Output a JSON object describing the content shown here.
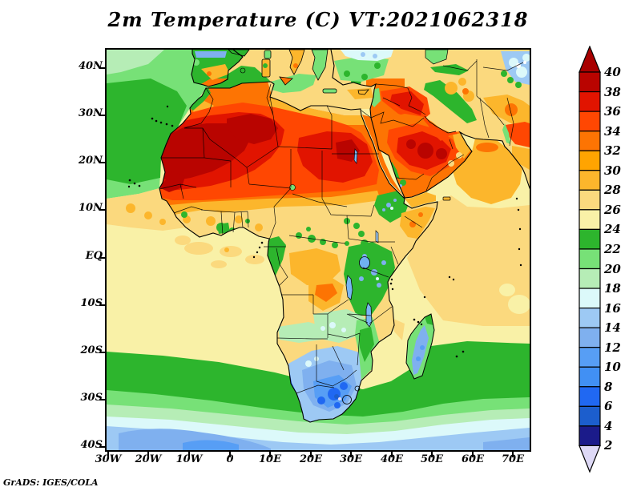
{
  "title": "2m  Temperature  (C)  VT:2021062318",
  "credit": "GrADS: IGES/COLA",
  "map": {
    "x_axis": {
      "labels": [
        "30W",
        "20W",
        "10W",
        "0",
        "10E",
        "20E",
        "30E",
        "40E",
        "50E",
        "60E",
        "70E"
      ]
    },
    "y_axis": {
      "labels": [
        "40N",
        "30N",
        "20N",
        "10N",
        "EQ",
        "10S",
        "20S",
        "30S",
        "40S"
      ]
    }
  },
  "colorbar": {
    "labels_top_to_bottom": [
      "40",
      "38",
      "36",
      "34",
      "32",
      "30",
      "28",
      "26",
      "24",
      "22",
      "20",
      "18",
      "16",
      "14",
      "12",
      "10",
      "8",
      "6",
      "4",
      "2"
    ],
    "over_color": "#a80000",
    "under_color": "#ded9f6",
    "cell_colors_top_to_bottom": [
      "#b90400",
      "#e11400",
      "#ff4702",
      "#fd7403",
      "#ffa401",
      "#fcb62c",
      "#fbd97e",
      "#f9f1a7",
      "#2db52d",
      "#77e177",
      "#b6edb6",
      "#dcf9fa",
      "#9dc9f4",
      "#7fb0ef",
      "#579ef5",
      "#4190f4",
      "#2068f2",
      "#1c5ecd",
      "#1b1b8a"
    ]
  },
  "chart_data": {
    "type": "heatmap",
    "title": "2m Temperature (C) VT:2021062318",
    "variable": "2-meter air temperature",
    "units": "C",
    "valid_time_label": "VT:2021062318",
    "source_label": "GrADS: IGES/COLA",
    "lon_range_deg": [
      -30.4,
      74.2
    ],
    "lat_range_deg": [
      -40.7,
      43.9
    ],
    "x_ticks": [
      "30W",
      "20W",
      "10W",
      "0",
      "10E",
      "20E",
      "30E",
      "40E",
      "50E",
      "60E",
      "70E"
    ],
    "y_ticks": [
      "40N",
      "30N",
      "20N",
      "10N",
      "EQ",
      "10S",
      "20S",
      "30S",
      "40S"
    ],
    "contour_levels_c": [
      2,
      4,
      6,
      8,
      10,
      12,
      14,
      16,
      18,
      20,
      22,
      24,
      26,
      28,
      30,
      32,
      34,
      36,
      38,
      40
    ],
    "palette_low_to_high": [
      "#ded9f6",
      "#1b1b8a",
      "#1c5ecd",
      "#2068f2",
      "#4190f4",
      "#579ef5",
      "#7fb0ef",
      "#9dc9f4",
      "#dcf9fa",
      "#b6edb6",
      "#77e177",
      "#2db52d",
      "#f9f1a7",
      "#fbd97e",
      "#fcb62c",
      "#ffa401",
      "#fd7403",
      "#ff4702",
      "#e11400",
      "#b90400",
      "#a80000"
    ],
    "legend_position": "right",
    "grid": false,
    "sampled_values_c": {
      "lons_deg": [
        -25,
        -15,
        -5,
        5,
        15,
        25,
        35,
        45,
        55,
        65,
        70
      ],
      "lats_deg": [
        40,
        30,
        20,
        10,
        0,
        -10,
        -20,
        -30,
        -40
      ],
      "values_by_lat_row": [
        [
          20,
          20,
          22,
          26,
          25,
          24,
          23,
          25,
          26,
          16,
          12
        ],
        [
          21,
          22,
          30,
          38,
          36,
          32,
          33,
          37,
          32,
          26,
          30
        ],
        [
          22,
          37,
          39,
          38,
          36,
          36,
          33,
          37,
          29,
          29,
          31
        ],
        [
          26,
          27,
          29,
          31,
          32,
          32,
          24,
          28,
          28,
          28,
          27
        ],
        [
          25,
          26,
          26,
          27,
          26,
          27,
          22,
          26,
          27,
          27,
          26
        ],
        [
          25,
          25,
          25,
          26,
          27,
          26,
          23,
          26,
          26,
          26,
          26
        ],
        [
          23,
          24,
          24,
          24,
          18,
          15,
          21,
          26,
          24,
          23,
          23
        ],
        [
          18,
          19,
          19,
          18,
          13,
          10,
          13,
          19,
          21,
          21,
          20
        ],
        [
          14,
          14,
          13,
          12,
          12,
          13,
          14,
          15,
          16,
          15,
          14
        ]
      ]
    },
    "notable_features": [
      "Dark red core 38-40C over western Sahara, Mauritania, Mali and interior Algeria",
      "Second 36-40C core over interior Arabian Peninsula and Iraq",
      "Green 20-24C ocean in the NE Atlantic off Iberia and Morocco",
      "Pale-yellow / khaki 24-28C tropical oceans and Congo basin",
      "Cool blue 8-16C over South Africa, Botswana, Namibia and Madagascar highlands",
      "Blue 10-16C Southern Ocean south of 35S",
      "Green/blue cool patches over East African and Ethiopian highlands"
    ]
  }
}
